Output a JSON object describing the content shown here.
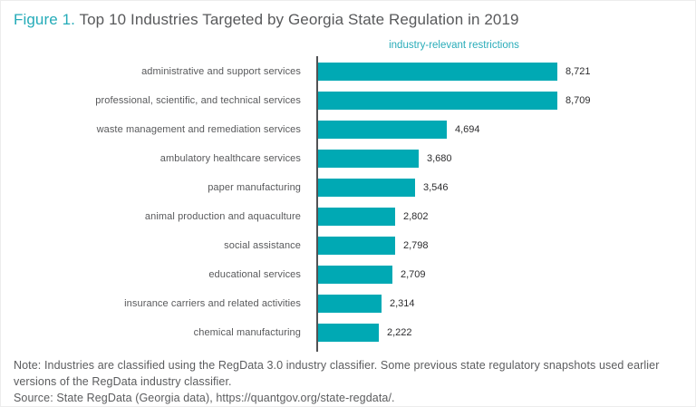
{
  "title": {
    "figure_label": "Figure 1.",
    "text": "Top 10 Industries Targeted by Georgia State Regulation in 2019"
  },
  "legend": {
    "label": "industry-relevant restrictions"
  },
  "chart_data": {
    "type": "bar",
    "orientation": "horizontal",
    "title": "Top 10 Industries Targeted by Georgia State Regulation in 2019",
    "series_label": "industry-relevant restrictions",
    "categories": [
      "administrative and support services",
      "professional, scientific, and technical services",
      "waste management and remediation services",
      "ambulatory healthcare services",
      "paper manufacturing",
      "animal production and aquaculture",
      "social assistance",
      "educational services",
      "insurance carriers and related activities",
      "chemical manufacturing"
    ],
    "values": [
      8721,
      8709,
      4694,
      3680,
      3546,
      2802,
      2798,
      2709,
      2314,
      2222
    ],
    "value_labels": [
      "8,721",
      "8,709",
      "4,694",
      "3,680",
      "3,546",
      "2,802",
      "2,798",
      "2,709",
      "2,314",
      "2,222"
    ],
    "xlim": [
      0,
      8721
    ],
    "grid": false,
    "legend_position": "top-center",
    "bar_color": "#00a9b4"
  },
  "notes": {
    "note": "Note: Industries are classified using the RegData 3.0 industry classifier. Some previous state regulatory snapshots used earlier versions of the RegData industry classifier.",
    "source": "Source: State RegData (Georgia data), https://quantgov.org/state-regdata/."
  },
  "colors": {
    "bar_teal": "#00a9b4",
    "figure_label_teal": "#24abb8",
    "legend_teal": "#29acb9",
    "text_gray": "#58595b",
    "value_text": "#2d2d2f",
    "axis_gray": "#515254"
  }
}
